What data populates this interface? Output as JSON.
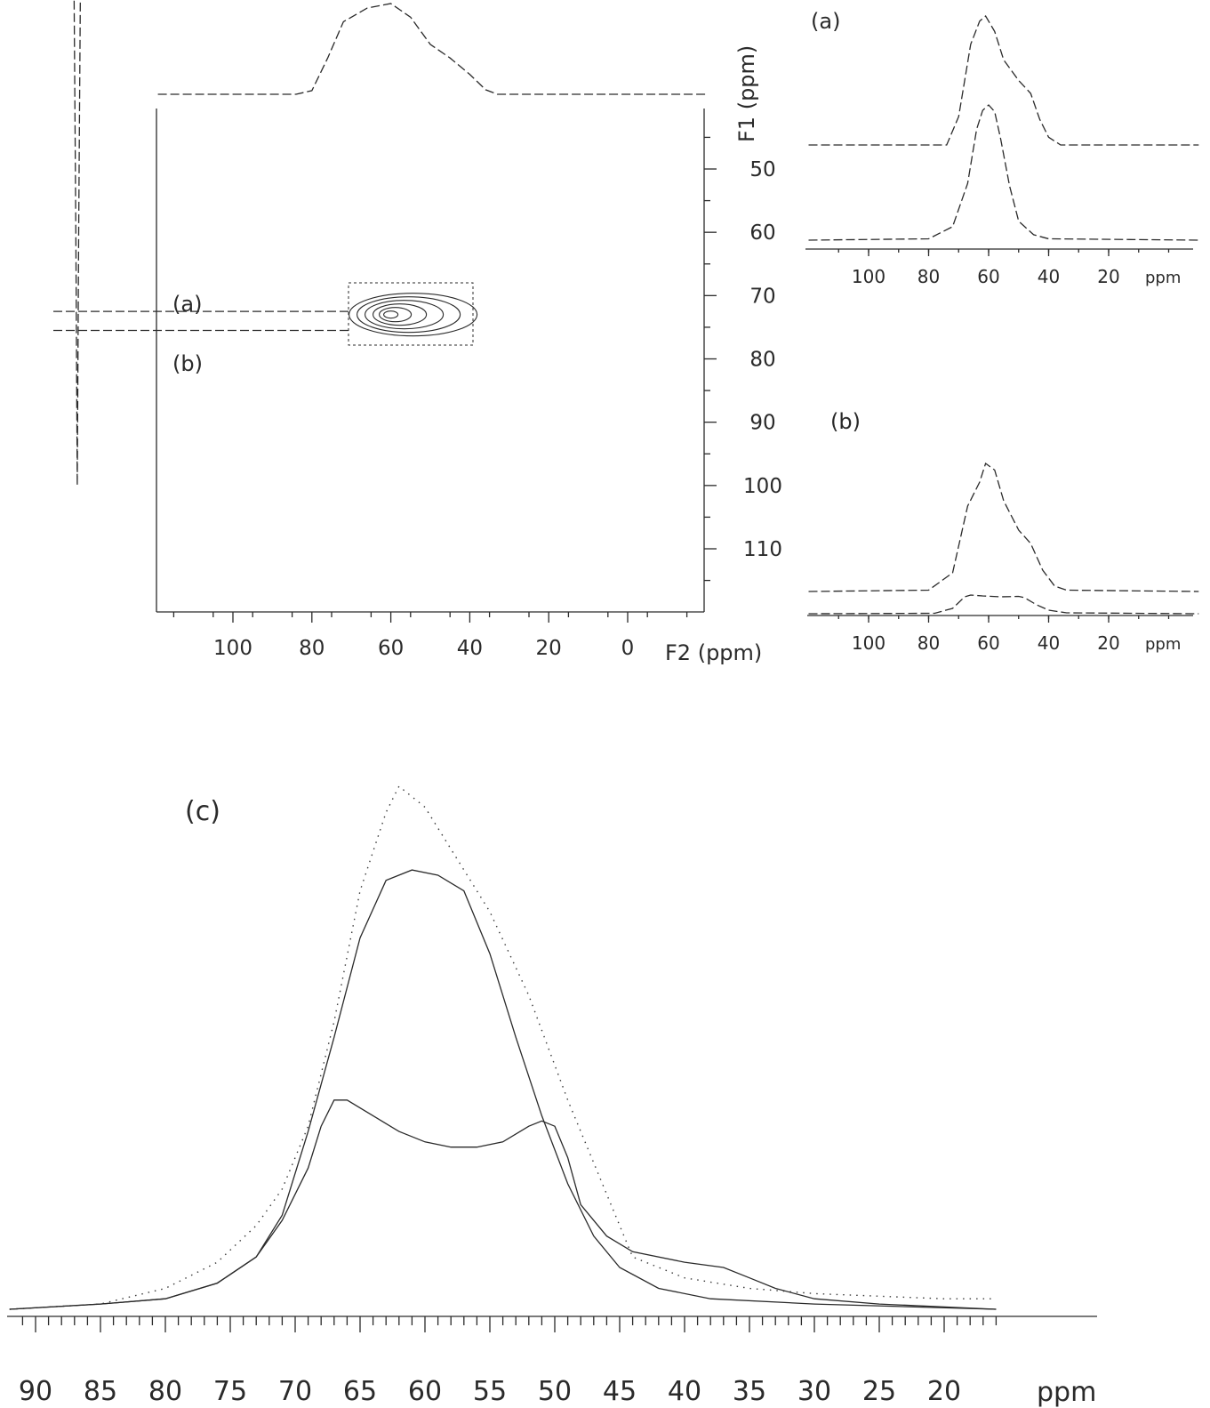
{
  "chart_data": [
    {
      "type": "contour",
      "panel": "2D correlation",
      "xlabel": "F2 (ppm)",
      "ylabel": "F1 (ppm)",
      "x_ticks": [
        100,
        80,
        60,
        40,
        20,
        0
      ],
      "y_ticks": [
        50,
        60,
        70,
        80,
        90,
        100,
        110
      ],
      "xlim": [
        119,
        -20
      ],
      "ylim": [
        40,
        120
      ],
      "slice_labels": [
        "(a)",
        "(b)"
      ],
      "slices_f1_ppm": [
        72.5,
        75.5
      ],
      "peak_center": {
        "f2": 60,
        "f1": 73
      },
      "f2_projection": [
        [
          119,
          0
        ],
        [
          84,
          0
        ],
        [
          80,
          4
        ],
        [
          76,
          40
        ],
        [
          72,
          80
        ],
        [
          66,
          95
        ],
        [
          60,
          100
        ],
        [
          55,
          85
        ],
        [
          50,
          55
        ],
        [
          45,
          40
        ],
        [
          40,
          22
        ],
        [
          36,
          5
        ],
        [
          33,
          0
        ],
        [
          -20,
          0
        ]
      ],
      "f1_projection": [
        [
          40,
          0
        ],
        [
          62,
          2
        ],
        [
          66,
          6
        ],
        [
          69,
          20
        ],
        [
          71,
          60
        ],
        [
          72.5,
          100
        ],
        [
          74,
          60
        ],
        [
          76,
          20
        ],
        [
          78,
          6
        ],
        [
          82,
          2
        ],
        [
          120,
          0
        ]
      ]
    },
    {
      "type": "line",
      "panel": "(a)",
      "title": "(a)",
      "xlabel": "ppm",
      "x_ticks": [
        100,
        80,
        60,
        40,
        20
      ],
      "xlim": [
        120,
        -10
      ],
      "series": [
        {
          "style": "dashed",
          "points": [
            [
              120,
              0
            ],
            [
              74,
              0
            ],
            [
              70,
              22
            ],
            [
              66,
              78
            ],
            [
              63,
              96
            ],
            [
              61,
              100
            ],
            [
              58,
              88
            ],
            [
              55,
              66
            ],
            [
              50,
              50
            ],
            [
              46,
              40
            ],
            [
              43,
              20
            ],
            [
              40,
              6
            ],
            [
              36,
              0
            ],
            [
              -10,
              0
            ]
          ]
        },
        {
          "style": "dashed",
          "points": [
            [
              120,
              0
            ],
            [
              80,
              1
            ],
            [
              72,
              10
            ],
            [
              67,
              42
            ],
            [
              64,
              82
            ],
            [
              62,
              96
            ],
            [
              60,
              100
            ],
            [
              58,
              95
            ],
            [
              56,
              75
            ],
            [
              53,
              40
            ],
            [
              50,
              14
            ],
            [
              45,
              4
            ],
            [
              40,
              1
            ],
            [
              -10,
              0
            ]
          ]
        }
      ]
    },
    {
      "type": "line",
      "panel": "(b)",
      "title": "(b)",
      "xlabel": "ppm",
      "x_ticks": [
        100,
        80,
        60,
        40,
        20
      ],
      "xlim": [
        120,
        -10
      ],
      "series": [
        {
          "style": "dashed",
          "points": [
            [
              120,
              4
            ],
            [
              80,
              5
            ],
            [
              72,
              18
            ],
            [
              67,
              68
            ],
            [
              63,
              86
            ],
            [
              61,
              100
            ],
            [
              58,
              95
            ],
            [
              55,
              72
            ],
            [
              50,
              50
            ],
            [
              46,
              40
            ],
            [
              42,
              20
            ],
            [
              38,
              8
            ],
            [
              34,
              5
            ],
            [
              -10,
              4
            ]
          ]
        },
        {
          "style": "dashed",
          "points": [
            [
              120,
              0
            ],
            [
              78,
              1
            ],
            [
              72,
              12
            ],
            [
              68,
              38
            ],
            [
              66,
              42
            ],
            [
              62,
              40
            ],
            [
              56,
              38
            ],
            [
              50,
              39
            ],
            [
              48,
              36
            ],
            [
              44,
              20
            ],
            [
              40,
              8
            ],
            [
              34,
              2
            ],
            [
              -10,
              0
            ]
          ]
        }
      ]
    },
    {
      "type": "line",
      "panel": "(c)",
      "title": "(c)",
      "xlabel": "ppm",
      "x_ticks": [
        90,
        85,
        80,
        75,
        70,
        65,
        60,
        55,
        50,
        45,
        40,
        35,
        30,
        25,
        20
      ],
      "xlim": [
        92,
        16
      ],
      "ylim": [
        0,
        100
      ],
      "series": [
        {
          "style": "dotted",
          "points": [
            [
              92,
              0
            ],
            [
              85,
              1
            ],
            [
              80,
              4
            ],
            [
              76,
              9
            ],
            [
              73,
              16
            ],
            [
              71,
              23
            ],
            [
              69,
              35
            ],
            [
              67,
              55
            ],
            [
              65,
              80
            ],
            [
              63,
              95
            ],
            [
              62,
              100
            ],
            [
              60,
              96
            ],
            [
              58,
              88
            ],
            [
              55,
              76
            ],
            [
              52,
              60
            ],
            [
              49,
              40
            ],
            [
              46,
              22
            ],
            [
              44,
              10
            ],
            [
              40,
              6
            ],
            [
              35,
              4
            ],
            [
              30,
              3
            ],
            [
              20,
              2
            ],
            [
              16,
              2
            ]
          ]
        },
        {
          "style": "solid",
          "points": [
            [
              92,
              0
            ],
            [
              85,
              1
            ],
            [
              80,
              2
            ],
            [
              76,
              5
            ],
            [
              73,
              10
            ],
            [
              71,
              18
            ],
            [
              69,
              34
            ],
            [
              67,
              52
            ],
            [
              65,
              71
            ],
            [
              63,
              82
            ],
            [
              61,
              84
            ],
            [
              59,
              83
            ],
            [
              57,
              80
            ],
            [
              55,
              68
            ],
            [
              53,
              52
            ],
            [
              51,
              37
            ],
            [
              49,
              24
            ],
            [
              47,
              14
            ],
            [
              45,
              8
            ],
            [
              42,
              4
            ],
            [
              38,
              2
            ],
            [
              30,
              1
            ],
            [
              16,
              0
            ]
          ]
        },
        {
          "style": "solid",
          "points": [
            [
              92,
              0
            ],
            [
              85,
              1
            ],
            [
              80,
              2
            ],
            [
              76,
              5
            ],
            [
              73,
              10
            ],
            [
              71,
              17
            ],
            [
              69,
              27
            ],
            [
              68,
              35
            ],
            [
              67,
              40
            ],
            [
              66,
              40
            ],
            [
              64,
              37
            ],
            [
              62,
              34
            ],
            [
              60,
              32
            ],
            [
              58,
              31
            ],
            [
              56,
              31
            ],
            [
              54,
              32
            ],
            [
              52,
              35
            ],
            [
              51,
              36
            ],
            [
              50,
              35
            ],
            [
              49,
              29
            ],
            [
              48,
              20
            ],
            [
              46,
              14
            ],
            [
              44,
              11
            ],
            [
              40,
              9
            ],
            [
              37,
              8
            ],
            [
              35,
              6
            ],
            [
              33,
              4
            ],
            [
              30,
              2
            ],
            [
              25,
              1
            ],
            [
              16,
              0
            ]
          ]
        }
      ]
    }
  ],
  "labels": {
    "xlabel_2d": "F2 (ppm)",
    "ylabel_2d": "F1 (ppm)",
    "slice_a": "(a)",
    "slice_b": "(b)",
    "panel_a": "(a)",
    "panel_b": "(b)",
    "panel_c": "(c)",
    "ppm_a": "ppm",
    "ppm_b": "ppm",
    "ppm_c": "ppm"
  }
}
